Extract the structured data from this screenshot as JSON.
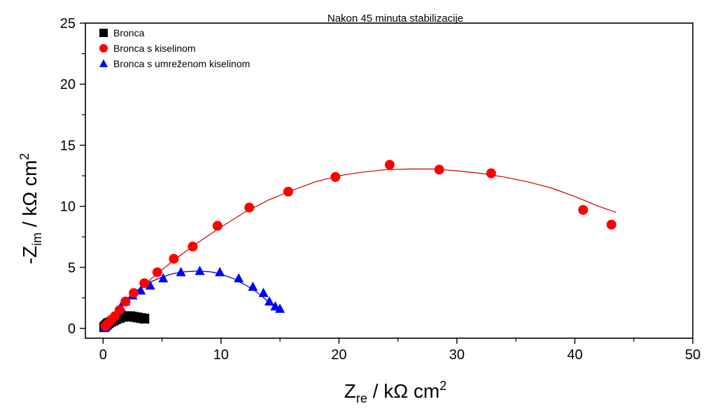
{
  "chart_data": {
    "type": "scatter",
    "title": "Nakon 45 minuta stabilizacije",
    "xlabel": {
      "main": "Z",
      "sub": "re",
      "unit": " / kΩ cm",
      "sup": "2"
    },
    "ylabel": {
      "prefix": "-Z",
      "sub": "im",
      "unit": " / kΩ cm",
      "sup": "2"
    },
    "xlim": [
      -1.5,
      50
    ],
    "ylim": [
      -0.8,
      25
    ],
    "xticks": [
      0,
      10,
      20,
      30,
      40,
      50
    ],
    "xtick_labels": [
      "0",
      "10",
      "20",
      "30",
      "40",
      "50"
    ],
    "yticks": [
      0,
      5,
      10,
      15,
      20,
      25
    ],
    "ytick_labels": [
      "0",
      "5",
      "10",
      "15",
      "20",
      "25"
    ],
    "grid": false,
    "legend_position": "top-left",
    "series": [
      {
        "name": "Bronca",
        "marker": "square",
        "color": "#000000",
        "x": [
          0.1,
          0.2,
          0.3,
          0.4,
          0.5,
          0.7,
          0.9,
          1.1,
          1.4,
          1.7,
          2.0,
          2.3,
          2.6,
          2.9,
          3.2,
          3.5
        ],
        "y": [
          0.1,
          0.2,
          0.3,
          0.4,
          0.45,
          0.55,
          0.65,
          0.75,
          0.85,
          0.95,
          1.0,
          1.0,
          0.95,
          0.9,
          0.85,
          0.8
        ]
      },
      {
        "name": "Bronca s kiselinom",
        "marker": "circle",
        "color": "#ff0000",
        "x": [
          0.2,
          0.4,
          0.7,
          1.0,
          1.4,
          1.9,
          2.6,
          3.5,
          4.6,
          6.0,
          7.6,
          9.7,
          12.4,
          15.7,
          19.7,
          24.3,
          28.5,
          32.9,
          40.7,
          43.1
        ],
        "y": [
          0.2,
          0.4,
          0.7,
          1.0,
          1.5,
          2.2,
          2.9,
          3.7,
          4.6,
          5.7,
          6.7,
          8.4,
          9.9,
          11.2,
          12.4,
          13.4,
          13.0,
          12.7,
          9.7,
          8.5
        ]
      },
      {
        "name": "Bronca s umreženom kiselinom",
        "marker": "triangle",
        "color": "#0000ff",
        "x": [
          0.1,
          0.2,
          0.35,
          0.5,
          0.7,
          0.9,
          1.2,
          1.5,
          1.9,
          2.5,
          3.2,
          4.0,
          5.1,
          6.6,
          8.2,
          9.9,
          11.5,
          12.7,
          13.6,
          14.1,
          14.6,
          15.0
        ],
        "y": [
          0.05,
          0.15,
          0.3,
          0.5,
          0.75,
          1.0,
          1.35,
          1.75,
          2.2,
          2.7,
          3.1,
          3.5,
          4.1,
          4.6,
          4.7,
          4.6,
          4.1,
          3.4,
          2.9,
          2.2,
          1.8,
          1.6
        ]
      }
    ],
    "fit_lines": [
      {
        "series": "Bronca s kiselinom",
        "color": "#cc0000",
        "x": [
          0.1,
          1,
          2,
          4,
          6,
          8,
          10,
          12,
          14,
          16,
          18,
          20,
          22,
          24,
          26,
          28,
          30,
          32,
          34,
          36,
          38,
          40,
          42,
          43.5
        ],
        "y": [
          0.1,
          1.2,
          2.2,
          4.0,
          5.6,
          7.0,
          8.3,
          9.5,
          10.5,
          11.3,
          12.0,
          12.5,
          12.8,
          13.0,
          13.05,
          13.05,
          12.9,
          12.7,
          12.4,
          12.0,
          11.5,
          10.8,
          10.0,
          9.5
        ]
      },
      {
        "series": "Bronca s umreženom kiselinom",
        "color": "#00008b",
        "x": [
          0.1,
          1,
          2,
          3,
          4,
          5,
          6,
          7,
          8,
          9,
          10,
          11,
          12,
          13,
          14,
          15
        ],
        "y": [
          0.05,
          1.3,
          2.4,
          3.2,
          3.8,
          4.2,
          4.5,
          4.65,
          4.7,
          4.65,
          4.45,
          4.1,
          3.6,
          3.0,
          2.2,
          1.4
        ]
      },
      {
        "series": "Bronca",
        "color": "#000000",
        "x": [
          0.1,
          0.5,
          1.0,
          1.5,
          2.0,
          2.5,
          3.0,
          3.5
        ],
        "y": [
          0.1,
          0.45,
          0.7,
          0.9,
          1.0,
          1.0,
          0.9,
          0.8
        ]
      }
    ]
  }
}
